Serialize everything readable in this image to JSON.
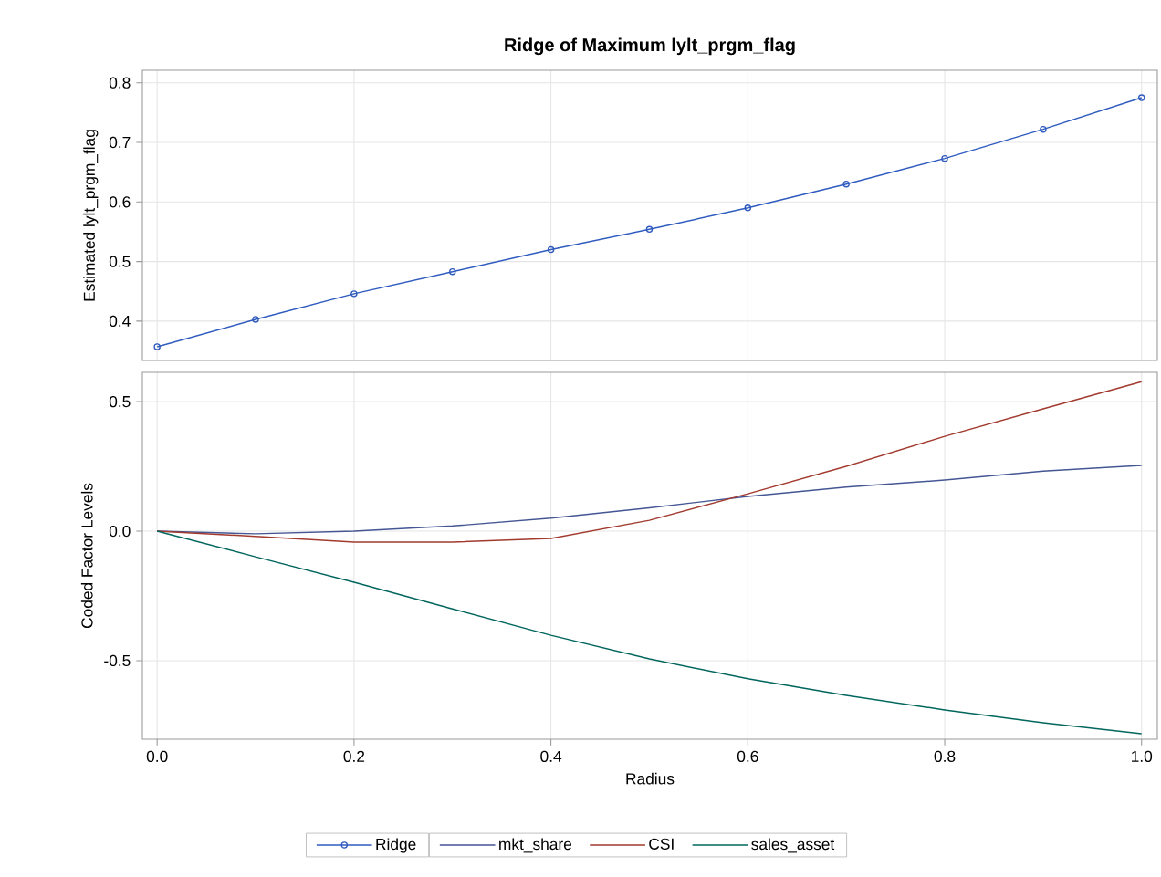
{
  "chart_data": [
    {
      "type": "line",
      "title": "Ridge of Maximum lylt_prgm_flag",
      "ylabel": "Estimated lylt_prgm_flag",
      "x": [
        0,
        0.1,
        0.2,
        0.3,
        0.4,
        0.5,
        0.6,
        0.7,
        0.8,
        0.9,
        1.0
      ],
      "series": [
        {
          "name": "Ridge",
          "color": "#2f5bbf",
          "values": [
            0.357,
            0.403,
            0.446,
            0.483,
            0.52,
            0.554,
            0.59,
            0.63,
            0.673,
            0.722,
            0.775
          ]
        }
      ],
      "xlim": [
        -0.015,
        1.016
      ],
      "xticks": [
        {
          "value": 0,
          "label": null
        },
        {
          "value": 0.2,
          "label": null
        },
        {
          "value": 0.4,
          "label": null
        },
        {
          "value": 0.6,
          "label": null
        },
        {
          "value": 0.8,
          "label": null
        },
        {
          "value": 1.0,
          "label": null
        }
      ],
      "ylim": [
        0.334,
        0.821
      ],
      "yticks": [
        0.4,
        0.5,
        0.6,
        0.7,
        0.8
      ],
      "tick_labels": "y",
      "grid": true,
      "marker": "circle",
      "legend": "bottom"
    },
    {
      "type": "line",
      "xlabel": "Radius",
      "ylabel": "Coded Factor Levels",
      "x": [
        0,
        0.1,
        0.2,
        0.3,
        0.4,
        0.5,
        0.6,
        0.7,
        0.8,
        0.9,
        1.0
      ],
      "series": [
        {
          "name": "mkt_share",
          "color": "#445694",
          "values": [
            0,
            -0.01,
            0,
            0.02,
            0.05,
            0.09,
            0.134,
            0.17,
            0.197,
            0.232,
            0.254
          ]
        },
        {
          "name": "CSI",
          "color": "#a23a2e",
          "values": [
            0,
            -0.02,
            -0.042,
            -0.042,
            -0.028,
            0.042,
            0.144,
            0.25,
            0.366,
            0.472,
            0.577
          ]
        },
        {
          "name": "sales_asset",
          "color": "#01665e",
          "values": [
            0,
            -0.099,
            -0.197,
            -0.3,
            -0.402,
            -0.493,
            -0.57,
            -0.634,
            -0.69,
            -0.74,
            -0.782
          ]
        }
      ],
      "xlim": [
        -0.015,
        1.016
      ],
      "xticks": [
        {
          "value": 0,
          "label": "0.0"
        },
        {
          "value": 0.2,
          "label": "0.2"
        },
        {
          "value": 0.4,
          "label": "0.4"
        },
        {
          "value": 0.6,
          "label": "0.6"
        },
        {
          "value": 0.8,
          "label": "0.8"
        },
        {
          "value": 1.0,
          "label": "1.0"
        }
      ],
      "ylim": [
        -0.803,
        0.613
      ],
      "yticks": [
        -0.5,
        {
          "value": 0,
          "label": "0.0"
        },
        0.5
      ],
      "grid": true,
      "marker": "none",
      "legend": "bottom"
    }
  ]
}
